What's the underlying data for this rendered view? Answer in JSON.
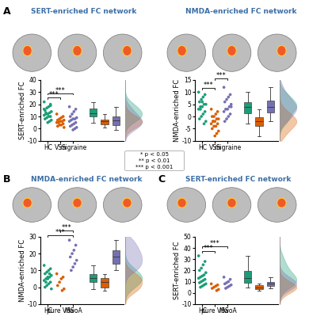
{
  "chart_data": [
    {
      "type": "strip_box",
      "panel": "A",
      "title": "SERT-enriched FC network",
      "y_label": "SERT-enriched FC",
      "categories": [
        "HC",
        "VSS",
        "migraine"
      ],
      "colors": [
        "#1b9e77",
        "#d95f02",
        "#7570b3"
      ],
      "points": [
        [
          22,
          20,
          18,
          17,
          15,
          14,
          13,
          12,
          12,
          11,
          10,
          10,
          9,
          8,
          7,
          6,
          5,
          13,
          16,
          19
        ],
        [
          12,
          10,
          9,
          8,
          7,
          7,
          6,
          6,
          5,
          5,
          4,
          3,
          3,
          2,
          1
        ],
        [
          18,
          16,
          14,
          12,
          10,
          9,
          8,
          8,
          7,
          6,
          5,
          4,
          3,
          2,
          1,
          0,
          -1
        ]
      ],
      "ylim": [
        -10,
        40
      ],
      "yticks": [
        -10,
        0,
        10,
        20,
        30,
        40
      ],
      "significance": [
        {
          "groups": [
            "HC",
            "VSS"
          ],
          "label": "***"
        },
        {
          "groups": [
            "HC",
            "migraine"
          ],
          "label": "***"
        }
      ]
    },
    {
      "type": "strip_box",
      "panel": "A",
      "title": "NMDA-enriched FC network",
      "y_label": "NMDA-enriched FC",
      "categories": [
        "HC",
        "VSS",
        "migraine"
      ],
      "colors": [
        "#1b9e77",
        "#d95f02",
        "#7570b3"
      ],
      "points": [
        [
          10,
          9,
          8,
          7,
          6,
          5,
          5,
          4,
          3,
          3,
          2,
          1,
          0,
          -1,
          -2,
          -3,
          6,
          4
        ],
        [
          3,
          2,
          1,
          0,
          0,
          -1,
          -1,
          -2,
          -2,
          -3,
          -3,
          -4,
          -4,
          -5,
          -6,
          -7,
          -8,
          -2
        ],
        [
          12,
          9,
          8,
          7,
          6,
          5,
          4,
          3,
          3,
          2,
          1,
          0,
          -1,
          -2,
          4
        ]
      ],
      "ylim": [
        -10,
        15
      ],
      "yticks": [
        -10,
        -5,
        0,
        5,
        10,
        15
      ],
      "significance": [
        {
          "groups": [
            "HC",
            "VSS"
          ],
          "label": "***"
        },
        {
          "groups": [
            "VSS",
            "migraine"
          ],
          "label": "***"
        }
      ]
    },
    {
      "type": "strip_box",
      "panel": "B",
      "title": "NMDA-enriched FC network",
      "y_label": "NMDA-enriched FC",
      "categories": [
        "HC",
        "pure VSS",
        "MwoA"
      ],
      "colors": [
        "#1b9e77",
        "#d95f02",
        "#7570b3"
      ],
      "points": [
        [
          13,
          11,
          10,
          9,
          8,
          7,
          6,
          6,
          5,
          4,
          3,
          2,
          1,
          0,
          -1,
          8,
          5,
          3
        ],
        [
          8,
          6,
          5,
          3,
          1,
          -1,
          -2
        ],
        [
          28,
          25,
          22,
          20,
          18,
          16,
          14,
          12,
          10
        ]
      ],
      "ylim": [
        -10,
        30
      ],
      "yticks": [
        -10,
        0,
        10,
        20,
        30
      ],
      "significance": [
        {
          "groups": [
            "HC",
            "MwoA"
          ],
          "label": "***"
        },
        {
          "groups": [
            "pure VSS",
            "MwoA"
          ],
          "label": "***"
        }
      ]
    },
    {
      "type": "strip_box",
      "panel": "C",
      "title": "SERT-enriched FC network",
      "y_label": "SERT-enriched FC",
      "categories": [
        "HC",
        "pure VSS",
        "MwoA"
      ],
      "colors": [
        "#1b9e77",
        "#d95f02",
        "#7570b3"
      ],
      "points": [
        [
          33,
          28,
          25,
          22,
          20,
          18,
          16,
          15,
          14,
          13,
          12,
          11,
          10,
          9,
          8,
          7,
          6,
          5
        ],
        [
          8,
          7,
          6,
          5,
          4,
          3,
          2
        ],
        [
          14,
          12,
          10,
          9,
          8,
          7,
          6,
          5,
          4
        ]
      ],
      "ylim": [
        -10,
        50
      ],
      "yticks": [
        -10,
        0,
        10,
        20,
        30,
        40,
        50
      ],
      "significance": [
        {
          "groups": [
            "HC",
            "pure VSS"
          ],
          "label": "***"
        },
        {
          "groups": [
            "HC",
            "MwoA"
          ],
          "label": "***"
        }
      ]
    }
  ],
  "significance_legend": [
    "* p < 0.05",
    "** p < 0.01",
    "*** p < 0.001"
  ]
}
